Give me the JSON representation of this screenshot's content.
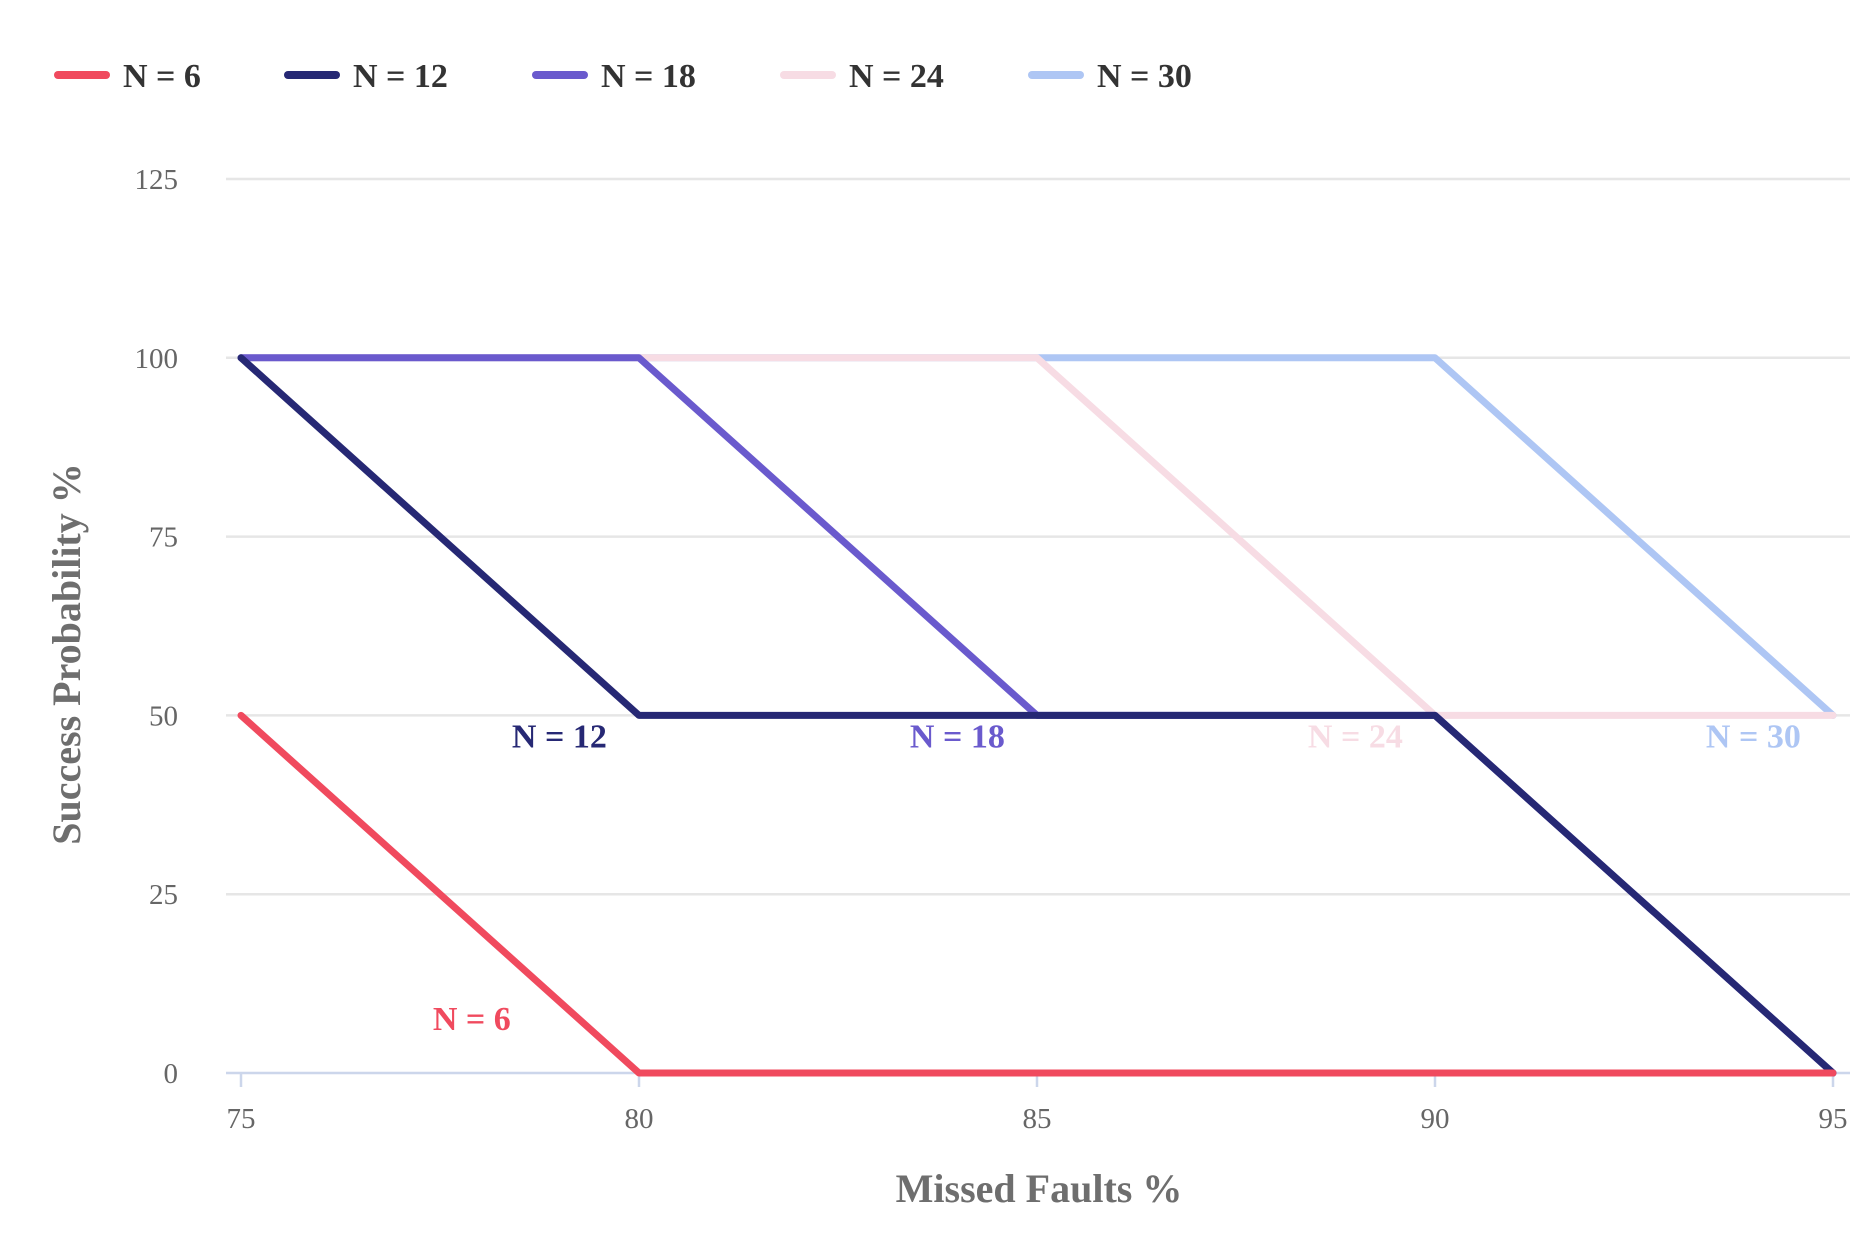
{
  "chart_data": {
    "type": "line",
    "xlabel": "Missed Faults %",
    "ylabel": "Success Probability %",
    "x": [
      75,
      80,
      85,
      90,
      95
    ],
    "xlim": [
      75,
      95
    ],
    "ylim": [
      0,
      125
    ],
    "x_ticks": [
      "75",
      "80",
      "85",
      "90",
      "95"
    ],
    "y_ticks": [
      "0",
      "25",
      "50",
      "75",
      "100",
      "125"
    ],
    "grid": true,
    "legend_position": "top-left",
    "series": [
      {
        "name": "N = 6",
        "color": "#f04a5e",
        "values": [
          50,
          0,
          0,
          0,
          0
        ],
        "label_x": 77.9,
        "label_y": 6
      },
      {
        "name": "N = 12",
        "color": "#262874",
        "values": [
          100,
          50,
          50,
          50,
          0
        ],
        "label_x": 79.0,
        "label_y": 45.5
      },
      {
        "name": "N = 18",
        "color": "#6a5acd",
        "values": [
          100,
          100,
          50,
          50,
          0
        ],
        "label_x": 84.0,
        "label_y": 45.5
      },
      {
        "name": "N = 24",
        "color": "#f7dce4",
        "values": [
          100,
          100,
          100,
          50,
          50
        ],
        "label_x": 89.0,
        "label_y": 45.5
      },
      {
        "name": "N = 30",
        "color": "#aec6f4",
        "values": [
          100,
          100,
          100,
          100,
          50
        ],
        "label_x": 94.0,
        "label_y": 45.5
      }
    ]
  }
}
